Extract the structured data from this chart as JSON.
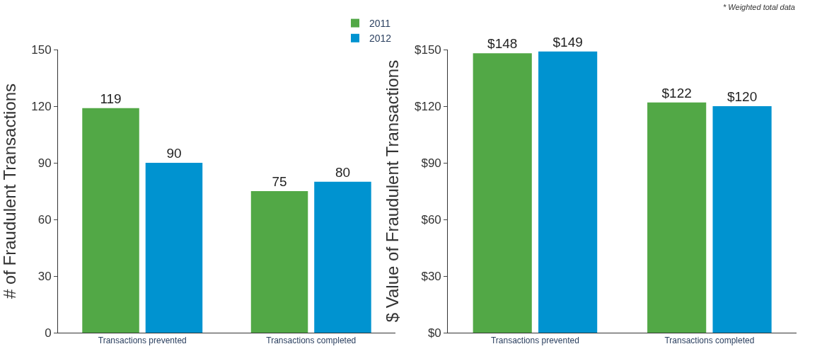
{
  "chart_data": [
    {
      "type": "bar",
      "ylabel": "# of Fraudulent Transactions",
      "categories": [
        "Transactions prevented",
        "Transactions completed"
      ],
      "series": [
        {
          "name": "2011",
          "color": "#52a846",
          "values": [
            119,
            75
          ]
        },
        {
          "name": "2012",
          "color": "#0093d0",
          "values": [
            90,
            80
          ]
        }
      ],
      "ylim": [
        0,
        150
      ],
      "yticks": [
        0,
        30,
        60,
        90,
        120,
        150
      ],
      "data_labels": true,
      "legend": "top right",
      "grid": false
    },
    {
      "type": "bar",
      "ylabel": "$ Value of Fraudulent Transactions",
      "categories": [
        "Transactions prevented",
        "Transactions completed"
      ],
      "series": [
        {
          "color": "#52a846",
          "values": [
            148,
            122
          ],
          "value_labels": [
            "$148",
            "$122"
          ]
        },
        {
          "color": "#0093d0",
          "values": [
            149,
            120
          ],
          "value_labels": [
            "$149",
            "$120"
          ]
        }
      ],
      "ylim": [
        0,
        150
      ],
      "yticks": [
        {
          "value": 0,
          "label": "$0"
        },
        {
          "value": 30,
          "label": "$30"
        },
        {
          "value": 60,
          "label": "$60"
        },
        {
          "value": 90,
          "label": "$90"
        },
        {
          "value": 120,
          "label": "$120"
        },
        {
          "value": 150,
          "label": "$150"
        }
      ],
      "annotations": [
        "* Weighted total data"
      ],
      "grid": false
    }
  ]
}
